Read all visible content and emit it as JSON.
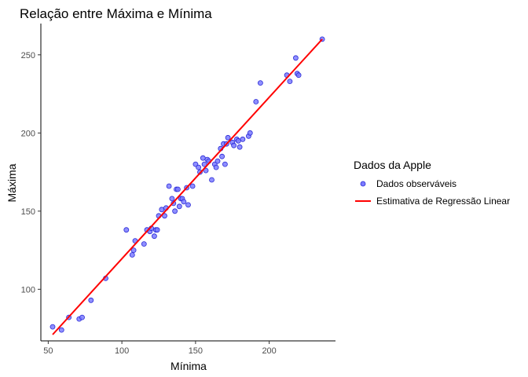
{
  "chart_data": {
    "type": "scatter",
    "title": "Relação entre Máxima e Mínima",
    "xlabel": "Mínima",
    "ylabel": "Máxima",
    "xlim": [
      45,
      245
    ],
    "ylim": [
      67,
      270
    ],
    "xticks": [
      50,
      100,
      150,
      200
    ],
    "yticks": [
      100,
      150,
      200,
      250
    ],
    "grid": false,
    "legend": {
      "position": "right",
      "title": "Dados da Apple",
      "points_label": "Dados observáveis",
      "line_label": "Estimativa de Regressão Linear"
    },
    "colors": {
      "points_fill": "#7b7bff",
      "points_stroke": "#2b2bd6",
      "line": "#ff0000",
      "axis": "#000000"
    },
    "series": [
      {
        "name": "Dados observáveis",
        "kind": "scatter",
        "x": [
          53,
          59,
          64,
          71,
          73,
          79,
          89,
          103,
          107,
          108,
          109,
          115,
          117,
          119,
          120,
          122,
          123,
          124,
          125,
          127,
          129,
          130,
          132,
          134,
          135,
          136,
          137,
          138,
          139,
          140,
          141,
          142,
          144,
          145,
          148,
          150,
          152,
          153,
          155,
          156,
          157,
          158,
          159,
          161,
          163,
          164,
          165,
          167,
          168,
          169,
          170,
          171,
          172,
          175,
          176,
          178,
          179,
          180,
          182,
          186,
          187,
          191,
          194,
          212,
          214,
          218,
          219,
          220,
          236
        ],
        "y": [
          76,
          74,
          82,
          81,
          82,
          93,
          107,
          138,
          122,
          125,
          131,
          129,
          138,
          137,
          139,
          134,
          138,
          138,
          147,
          151,
          147,
          152,
          166,
          158,
          155,
          150,
          164,
          164,
          153,
          158,
          158,
          156,
          165,
          154,
          166,
          180,
          178,
          175,
          184,
          180,
          176,
          183,
          182,
          170,
          180,
          178,
          182,
          190,
          185,
          193,
          180,
          193,
          197,
          194,
          192,
          196,
          195,
          191,
          196,
          198,
          200,
          220,
          232,
          237,
          233,
          248,
          238,
          237,
          260
        ]
      },
      {
        "name": "Estimativa de Regressão Linear",
        "kind": "line",
        "x": [
          53,
          236
        ],
        "y": [
          71,
          260
        ]
      }
    ]
  }
}
